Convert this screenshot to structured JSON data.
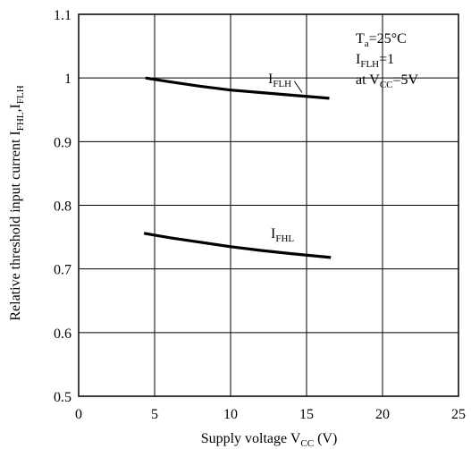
{
  "chart_data": {
    "type": "line",
    "xlabel": {
      "main": "Supply voltage V",
      "sub": "CC",
      "tail": " (V)"
    },
    "ylabel": {
      "main": "Relative threshold input current I",
      "sub": "FHL",
      "mid": ",I",
      "sub2": "FLH"
    },
    "xlim": [
      0,
      25
    ],
    "ylim": [
      0.5,
      1.1
    ],
    "xticks": [
      0,
      5,
      10,
      15,
      20,
      25
    ],
    "yticks": [
      0.5,
      0.6,
      0.7,
      0.8,
      0.9,
      1.0,
      1.1
    ],
    "xtick_labels": [
      "0",
      "5",
      "10",
      "15",
      "20",
      "25"
    ],
    "ytick_labels": [
      "0.5",
      "0.6",
      "0.7",
      "0.8",
      "0.9",
      "1",
      "1.1"
    ],
    "grid": true,
    "series": [
      {
        "name": {
          "main": "I",
          "sub": "FLH"
        },
        "x": [
          4.4,
          6,
          8,
          10,
          12,
          14,
          16.5
        ],
        "y": [
          1.0,
          0.994,
          0.987,
          0.981,
          0.977,
          0.973,
          0.968
        ]
      },
      {
        "name": {
          "main": "I",
          "sub": "FHL"
        },
        "x": [
          4.3,
          6,
          8,
          10,
          12,
          14,
          16.6
        ],
        "y": [
          0.756,
          0.749,
          0.742,
          0.735,
          0.729,
          0.724,
          0.718
        ]
      }
    ],
    "annotation": [
      {
        "main": "T",
        "sub": "a",
        "tail": "=25°C"
      },
      {
        "main": "I",
        "sub": "FLH",
        "tail": "=1"
      },
      {
        "main": "at V",
        "sub": "CC",
        "tail": "=5V"
      }
    ]
  }
}
